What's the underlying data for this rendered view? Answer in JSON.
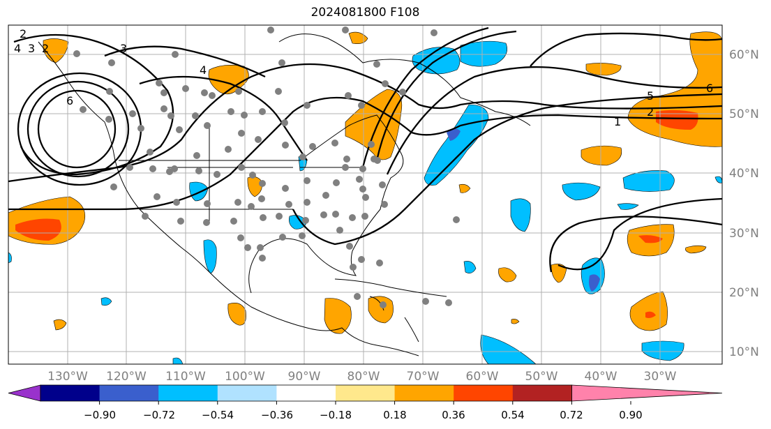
{
  "title": "2024081800 F108",
  "lon_labels": [
    "130°W",
    "120°W",
    "110°W",
    "100°W",
    "90°W",
    "80°W",
    "70°W",
    "60°W",
    "50°W",
    "40°W",
    "30°W"
  ],
  "lat_labels": [
    "60°N",
    "50°N",
    "40°N",
    "30°N",
    "20°N",
    "10°N"
  ],
  "contour_labels": [
    "1",
    "2",
    "5",
    "6",
    "4",
    "3",
    "2",
    "3",
    "4",
    "6",
    "2"
  ],
  "colorbar": {
    "colors": [
      "#9932cc",
      "#00008b",
      "#3a5fcd",
      "#00bfff",
      "#b0e2ff",
      "#ffffff",
      "#ffe88c",
      "#ffa500",
      "#ff4500",
      "#b22222",
      "#ff82ab"
    ],
    "tick_labels": [
      "−0.90",
      "−0.72",
      "−0.54",
      "−0.36",
      "−0.18",
      "0.18",
      "0.36",
      "0.54",
      "0.72",
      "0.90"
    ]
  },
  "colors": {
    "orange": "#ffa500",
    "red_orange": "#ff4500",
    "sky_blue": "#00bfff",
    "blue": "#3a5fcd",
    "station_dot": "#808080",
    "grid": "#b0b0b0"
  }
}
